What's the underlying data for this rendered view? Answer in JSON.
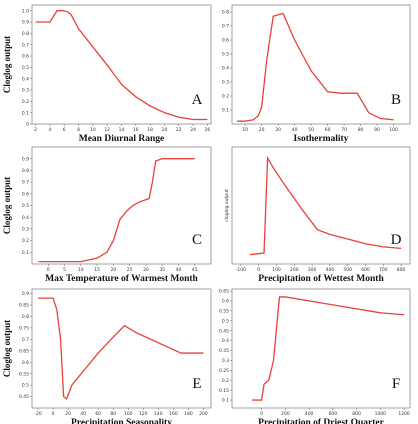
{
  "chart_data": [
    {
      "type": "line",
      "panel": "A",
      "xlabel": "Mean Diurnal Range",
      "ylabel": "Cloglog output",
      "xlim": [
        1.5,
        26.5
      ],
      "ylim": [
        0,
        1.05
      ],
      "xticks": [
        "2",
        "4",
        "6",
        "8",
        "10",
        "12",
        "14",
        "16",
        "18",
        "20",
        "22",
        "24",
        "26"
      ],
      "yticks": [
        "0",
        "0.1",
        "0.2",
        "0.3",
        "0.4",
        "0.5",
        "0.6",
        "0.7",
        "0.8",
        "0.9",
        "1.0"
      ],
      "x": [
        2,
        4,
        5,
        5.8,
        6.5,
        7,
        8,
        10,
        12,
        14,
        16,
        18,
        20,
        22,
        24,
        26
      ],
      "y": [
        0.9,
        0.9,
        1.0,
        1.0,
        0.99,
        0.96,
        0.84,
        0.68,
        0.52,
        0.35,
        0.24,
        0.16,
        0.1,
        0.06,
        0.04,
        0.04
      ]
    },
    {
      "type": "line",
      "panel": "B",
      "xlabel": "Isothermality",
      "ylabel": "",
      "xlim": [
        2,
        110
      ],
      "ylim": [
        0,
        0.85
      ],
      "xticks": [
        "10",
        "20",
        "30",
        "40",
        "50",
        "60",
        "70",
        "80",
        "90",
        "100"
      ],
      "yticks": [
        "0.1",
        "0.2",
        "0.3",
        "0.4",
        "0.5",
        "0.6",
        "0.7",
        "0.8"
      ],
      "x": [
        5,
        10,
        15,
        18,
        20,
        23,
        27,
        33,
        40,
        50,
        60,
        68,
        78,
        85,
        92,
        100
      ],
      "y": [
        0.02,
        0.02,
        0.03,
        0.06,
        0.12,
        0.45,
        0.77,
        0.79,
        0.6,
        0.38,
        0.23,
        0.22,
        0.22,
        0.08,
        0.04,
        0.03
      ]
    },
    {
      "type": "line",
      "panel": "C",
      "xlabel": "Max Temperature of Warmest Month",
      "ylabel": "Cloglog output",
      "xlim": [
        -5,
        50
      ],
      "ylim": [
        0,
        1.0
      ],
      "xticks": [
        "0",
        "5",
        "10",
        "15",
        "20",
        "25",
        "30",
        "35",
        "40",
        "45"
      ],
      "yticks": [
        "0.1",
        "0.2",
        "0.3",
        "0.4",
        "0.5",
        "0.6",
        "0.7",
        "0.8",
        "0.9"
      ],
      "x": [
        -3,
        10,
        15,
        18,
        20,
        22,
        24,
        26,
        28,
        31,
        32,
        33,
        35,
        40,
        45
      ],
      "y": [
        0.02,
        0.02,
        0.05,
        0.1,
        0.2,
        0.38,
        0.45,
        0.5,
        0.53,
        0.56,
        0.7,
        0.88,
        0.9,
        0.9,
        0.9
      ]
    },
    {
      "type": "line",
      "panel": "D",
      "xlabel": "Precipitation of Wettest Month",
      "ylabel": "cloglog output",
      "xlim": [
        -150,
        850
      ],
      "ylim": [
        0,
        0.75
      ],
      "xticks": [
        "-100",
        "0",
        "100",
        "200",
        "300",
        "400",
        "500",
        "600",
        "700",
        "800"
      ],
      "yticks": [],
      "x": [
        -50,
        30,
        50,
        80,
        150,
        250,
        330,
        400,
        500,
        600,
        700,
        800
      ],
      "y": [
        0.06,
        0.07,
        0.68,
        0.62,
        0.5,
        0.34,
        0.22,
        0.19,
        0.16,
        0.13,
        0.11,
        0.1
      ]
    },
    {
      "type": "line",
      "panel": "E",
      "xlabel": "Precipitation Seasonality",
      "ylabel": "Cloglog output",
      "xlim": [
        -28,
        210
      ],
      "ylim": [
        0.4,
        0.92
      ],
      "xticks": [
        "-20",
        "0",
        "20",
        "40",
        "60",
        "80",
        "100",
        "120",
        "140",
        "160",
        "180",
        "200"
      ],
      "yticks": [
        "0.45",
        "0.5",
        "0.55",
        "0.6",
        "0.65",
        "0.7",
        "0.75",
        "0.8",
        "0.85",
        "0.9"
      ],
      "x": [
        -20,
        0,
        5,
        10,
        14,
        18,
        25,
        40,
        60,
        80,
        95,
        110,
        130,
        150,
        170,
        200
      ],
      "y": [
        0.88,
        0.88,
        0.83,
        0.7,
        0.45,
        0.44,
        0.5,
        0.56,
        0.64,
        0.71,
        0.76,
        0.73,
        0.7,
        0.67,
        0.64,
        0.64
      ]
    },
    {
      "type": "line",
      "panel": "F",
      "xlabel": "Precipitation of Driest Quarter",
      "ylabel": "",
      "xlim": [
        -250,
        1250
      ],
      "ylim": [
        0.06,
        0.66
      ],
      "xticks": [
        "0",
        "200",
        "400",
        "600",
        "800",
        "1000",
        "1200"
      ],
      "yticks": [
        "0.1",
        "0.15",
        "0.2",
        "0.25",
        "0.3",
        "0.35",
        "0.4",
        "0.45",
        "0.5",
        "0.55",
        "0.6",
        "0.65"
      ],
      "x": [
        -80,
        0,
        20,
        60,
        100,
        150,
        200,
        400,
        600,
        800,
        1000,
        1200
      ],
      "y": [
        0.1,
        0.1,
        0.18,
        0.2,
        0.3,
        0.62,
        0.62,
        0.6,
        0.58,
        0.56,
        0.54,
        0.53
      ]
    }
  ]
}
